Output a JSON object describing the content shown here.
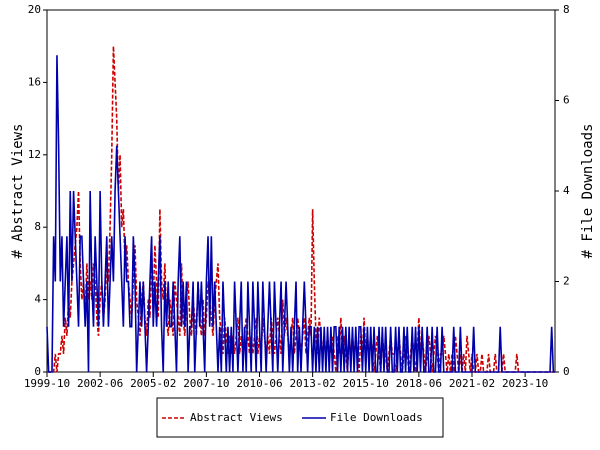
{
  "chart_data": {
    "type": "line",
    "x": [
      "1999-10",
      "1999-11",
      "1999-12",
      "2000-01",
      "2000-02",
      "2000-03",
      "2000-04",
      "2000-05",
      "2000-06",
      "2000-07",
      "2000-08",
      "2000-09",
      "2000-10",
      "2000-11",
      "2000-12",
      "2001-01",
      "2001-02",
      "2001-03",
      "2001-04",
      "2001-05",
      "2001-06",
      "2001-07",
      "2001-08",
      "2001-09",
      "2001-10",
      "2001-11",
      "2001-12",
      "2002-01",
      "2002-02",
      "2002-03",
      "2002-04",
      "2002-05",
      "2002-06",
      "2002-07",
      "2002-08",
      "2002-09",
      "2002-10",
      "2002-11",
      "2002-12",
      "2003-01",
      "2003-02",
      "2003-03",
      "2003-04",
      "2003-05",
      "2003-06",
      "2003-07",
      "2003-08",
      "2003-09",
      "2003-10",
      "2003-11",
      "2003-12",
      "2004-01",
      "2004-02",
      "2004-03",
      "2004-04",
      "2004-05",
      "2004-06",
      "2004-07",
      "2004-08",
      "2004-09",
      "2004-10",
      "2004-11",
      "2004-12",
      "2005-01",
      "2005-02",
      "2005-03",
      "2005-04",
      "2005-05",
      "2005-06",
      "2005-07",
      "2005-08",
      "2005-09",
      "2005-10",
      "2005-11",
      "2005-12",
      "2006-01",
      "2006-02",
      "2006-03",
      "2006-04",
      "2006-05",
      "2006-06",
      "2006-07",
      "2006-08",
      "2006-09",
      "2006-10",
      "2006-11",
      "2006-12",
      "2007-01",
      "2007-02",
      "2007-03",
      "2007-04",
      "2007-05",
      "2007-06",
      "2007-07",
      "2007-08",
      "2007-09",
      "2007-10",
      "2007-11",
      "2007-12",
      "2008-01",
      "2008-02",
      "2008-03",
      "2008-04",
      "2008-05",
      "2008-06",
      "2008-07",
      "2008-08",
      "2008-09",
      "2008-10",
      "2008-11",
      "2008-12",
      "2009-01",
      "2009-02",
      "2009-03",
      "2009-04",
      "2009-05",
      "2009-06",
      "2009-07",
      "2009-08",
      "2009-09",
      "2009-10",
      "2009-11",
      "2009-12",
      "2010-01",
      "2010-02",
      "2010-03",
      "2010-04",
      "2010-05",
      "2010-06",
      "2010-07",
      "2010-08",
      "2010-09",
      "2010-10",
      "2010-11",
      "2010-12",
      "2011-01",
      "2011-02",
      "2011-03",
      "2011-04",
      "2011-05",
      "2011-06",
      "2011-07",
      "2011-08",
      "2011-09",
      "2011-10",
      "2011-11",
      "2011-12",
      "2012-01",
      "2012-02",
      "2012-03",
      "2012-04",
      "2012-05",
      "2012-06",
      "2012-07",
      "2012-08",
      "2012-09",
      "2012-10",
      "2012-11",
      "2012-12",
      "2013-01",
      "2013-02",
      "2013-03",
      "2013-04",
      "2013-05",
      "2013-06",
      "2013-07",
      "2013-08",
      "2013-09",
      "2013-10",
      "2013-11",
      "2013-12",
      "2014-01",
      "2014-02",
      "2014-03",
      "2014-04",
      "2014-05",
      "2014-06",
      "2014-07",
      "2014-08",
      "2014-09",
      "2014-10",
      "2014-11",
      "2014-12",
      "2015-01",
      "2015-02",
      "2015-03",
      "2015-04",
      "2015-05",
      "2015-06",
      "2015-07",
      "2015-08",
      "2015-09",
      "2015-10",
      "2015-11",
      "2015-12",
      "2016-01",
      "2016-02",
      "2016-03",
      "2016-04",
      "2016-05",
      "2016-06",
      "2016-07",
      "2016-08",
      "2016-09",
      "2016-10",
      "2016-11",
      "2016-12",
      "2017-01",
      "2017-02",
      "2017-03",
      "2017-04",
      "2017-05",
      "2017-06",
      "2017-07",
      "2017-08",
      "2017-09",
      "2017-10",
      "2017-11",
      "2017-12",
      "2018-01",
      "2018-02",
      "2018-03",
      "2018-04",
      "2018-05",
      "2018-06",
      "2018-07",
      "2018-08",
      "2018-09",
      "2018-10",
      "2018-11",
      "2018-12",
      "2019-01",
      "2019-02",
      "2019-03",
      "2019-04",
      "2019-05",
      "2019-06",
      "2019-07",
      "2019-08",
      "2019-09",
      "2019-10",
      "2019-11",
      "2019-12",
      "2020-01",
      "2020-02",
      "2020-03",
      "2020-04",
      "2020-05",
      "2020-06",
      "2020-07",
      "2020-08",
      "2020-09",
      "2020-10",
      "2020-11",
      "2020-12",
      "2021-01",
      "2021-02",
      "2021-03",
      "2021-04",
      "2021-05",
      "2021-06",
      "2021-07",
      "2021-08",
      "2021-09",
      "2021-10",
      "2021-11",
      "2021-12",
      "2022-01",
      "2022-02",
      "2022-03",
      "2022-04",
      "2022-05",
      "2022-06",
      "2022-07",
      "2022-08",
      "2022-09",
      "2022-10",
      "2022-11",
      "2022-12",
      "2023-01",
      "2023-02",
      "2023-03",
      "2023-04",
      "2023-05",
      "2023-06",
      "2023-07",
      "2023-08",
      "2023-09",
      "2023-10",
      "2023-11",
      "2023-12",
      "2024-01",
      "2024-02",
      "2024-03",
      "2024-04",
      "2024-05",
      "2024-06",
      "2024-07",
      "2024-08",
      "2024-09",
      "2024-10",
      "2024-11",
      "2024-12",
      "2025-01",
      "2025-02",
      "2025-03",
      "2025-04"
    ],
    "xticks": [
      "1999-10",
      "2002-06",
      "2005-02",
      "2007-10",
      "2010-06",
      "2013-02",
      "2015-10",
      "2018-06",
      "2021-02",
      "2023-10"
    ],
    "ylabel": "# Abstract Views",
    "y2label": "# File Downloads",
    "ylim": [
      0,
      20
    ],
    "yticks": [
      0,
      4,
      8,
      12,
      16,
      20
    ],
    "y2lim": [
      0,
      8
    ],
    "y2ticks": [
      0,
      2,
      4,
      6,
      8
    ],
    "legend": "bottom",
    "series": [
      {
        "name": "Abstract Views",
        "color": "#cc0000",
        "dash": true,
        "values": [
          0,
          0,
          0,
          0,
          0,
          1,
          0,
          1,
          1,
          2,
          1,
          3,
          2,
          4,
          3,
          5,
          6,
          7,
          8,
          10,
          6,
          4,
          5,
          3,
          6,
          4,
          5,
          4,
          6,
          5,
          3,
          2,
          4,
          5,
          3,
          4,
          6,
          5,
          8,
          12,
          18,
          16,
          14,
          10,
          12,
          8,
          9,
          6,
          7,
          5,
          4,
          3,
          5,
          7,
          4,
          3,
          2,
          4,
          5,
          3,
          2,
          4,
          3,
          6,
          4,
          7,
          5,
          3,
          9,
          5,
          4,
          6,
          3,
          2,
          4,
          3,
          2,
          5,
          4,
          3,
          2,
          6,
          3,
          2,
          4,
          5,
          3,
          2,
          4,
          3,
          2,
          5,
          3,
          2,
          4,
          2,
          3,
          5,
          4,
          3,
          2,
          4,
          5,
          6,
          3,
          2,
          1,
          3,
          2,
          1,
          2,
          1,
          2,
          1,
          2,
          3,
          1,
          2,
          1,
          2,
          3,
          2,
          1,
          2,
          1,
          2,
          3,
          1,
          2,
          1,
          3,
          2,
          1,
          2,
          1,
          3,
          2,
          1,
          2,
          3,
          2,
          1,
          4,
          2,
          3,
          2,
          1,
          2,
          3,
          1,
          2,
          3,
          2,
          1,
          2,
          3,
          1,
          2,
          3,
          2,
          9,
          5,
          2,
          1,
          3,
          2,
          1,
          2,
          1,
          2,
          1,
          1,
          2,
          1,
          0,
          2,
          1,
          3,
          1,
          2,
          1,
          0,
          2,
          1,
          2,
          1,
          2,
          1,
          0,
          2,
          1,
          3,
          1,
          2,
          1,
          2,
          1,
          0,
          1,
          2,
          1,
          0,
          2,
          1,
          1,
          0,
          1,
          2,
          1,
          1,
          0,
          1,
          2,
          1,
          0,
          1,
          2,
          1,
          0,
          1,
          2,
          1,
          0,
          1,
          3,
          1,
          2,
          1,
          0,
          1,
          2,
          1,
          0,
          1,
          2,
          1,
          0,
          1,
          1,
          2,
          1,
          0,
          1,
          0,
          1,
          0,
          2,
          1,
          0,
          1,
          0,
          1,
          0,
          2,
          1,
          0,
          1,
          0,
          0,
          1,
          0,
          0,
          1,
          0,
          0,
          0,
          1,
          0,
          0,
          0,
          1,
          0,
          0,
          0,
          0,
          1,
          0,
          0,
          0,
          0,
          0,
          0,
          0,
          1,
          0,
          0,
          0,
          0,
          0,
          0,
          0,
          0,
          0,
          0,
          0,
          0,
          0,
          0,
          0,
          0,
          0,
          0,
          0,
          0,
          0,
          0,
          0
        ]
      },
      {
        "name": "File Downloads",
        "color": "#0000aa",
        "axis": "y2",
        "values": [
          1,
          0,
          0,
          0,
          3,
          2,
          7,
          5,
          2,
          3,
          1,
          2,
          3,
          1,
          4,
          2,
          4,
          3,
          2,
          1,
          3,
          3,
          2,
          1,
          2,
          0,
          4,
          2,
          1,
          3,
          2,
          1,
          4,
          2,
          1,
          2,
          3,
          1,
          2,
          3,
          2,
          4,
          5,
          4,
          3,
          2,
          1,
          3,
          2,
          2,
          1,
          1,
          3,
          2,
          0,
          1,
          2,
          1,
          2,
          1,
          0,
          1,
          2,
          3,
          1,
          2,
          1,
          2,
          3,
          1,
          0,
          2,
          1,
          2,
          1,
          1,
          2,
          1,
          0,
          2,
          3,
          1,
          2,
          1,
          2,
          0,
          1,
          1,
          2,
          0,
          1,
          2,
          1,
          2,
          1,
          0,
          2,
          3,
          1,
          3,
          1,
          2,
          1,
          0,
          1,
          0,
          2,
          1,
          0,
          1,
          0,
          1,
          0,
          2,
          1,
          0,
          1,
          2,
          0,
          1,
          0,
          2,
          1,
          0,
          2,
          1,
          0,
          2,
          1,
          0,
          2,
          1,
          0,
          1,
          2,
          1,
          0,
          2,
          1,
          0,
          1,
          2,
          0,
          1,
          2,
          1,
          0,
          1,
          0,
          1,
          2,
          0,
          1,
          0,
          1,
          2,
          1,
          0,
          1,
          1,
          0,
          1,
          0,
          1,
          0,
          1,
          0,
          1,
          0,
          1,
          0,
          1,
          0,
          1,
          1,
          0,
          1,
          0,
          1,
          0,
          1,
          0,
          1,
          0,
          1,
          0,
          1,
          0,
          1,
          1,
          0,
          1,
          0,
          1,
          0,
          1,
          0,
          1,
          0,
          0,
          1,
          0,
          1,
          0,
          1,
          0,
          0,
          1,
          0,
          0,
          1,
          0,
          1,
          0,
          0,
          1,
          0,
          1,
          0,
          0,
          1,
          0,
          1,
          0,
          1,
          0,
          1,
          0,
          0,
          1,
          0,
          0,
          1,
          0,
          0,
          1,
          0,
          0,
          1,
          0,
          0,
          0,
          0,
          0,
          0,
          1,
          0,
          0,
          0,
          1,
          0,
          0,
          0,
          0,
          0,
          0,
          0,
          1,
          0,
          0,
          0,
          0,
          0,
          0,
          0,
          0,
          0,
          0,
          0,
          0,
          0,
          0,
          0,
          1,
          0,
          0,
          0,
          0,
          0,
          0,
          0,
          0,
          0,
          0,
          0,
          0,
          0,
          0,
          0,
          0,
          0,
          0,
          0,
          0,
          0,
          0,
          0,
          0,
          0,
          0,
          0,
          0,
          0,
          0,
          1,
          0,
          0
        ]
      }
    ]
  }
}
